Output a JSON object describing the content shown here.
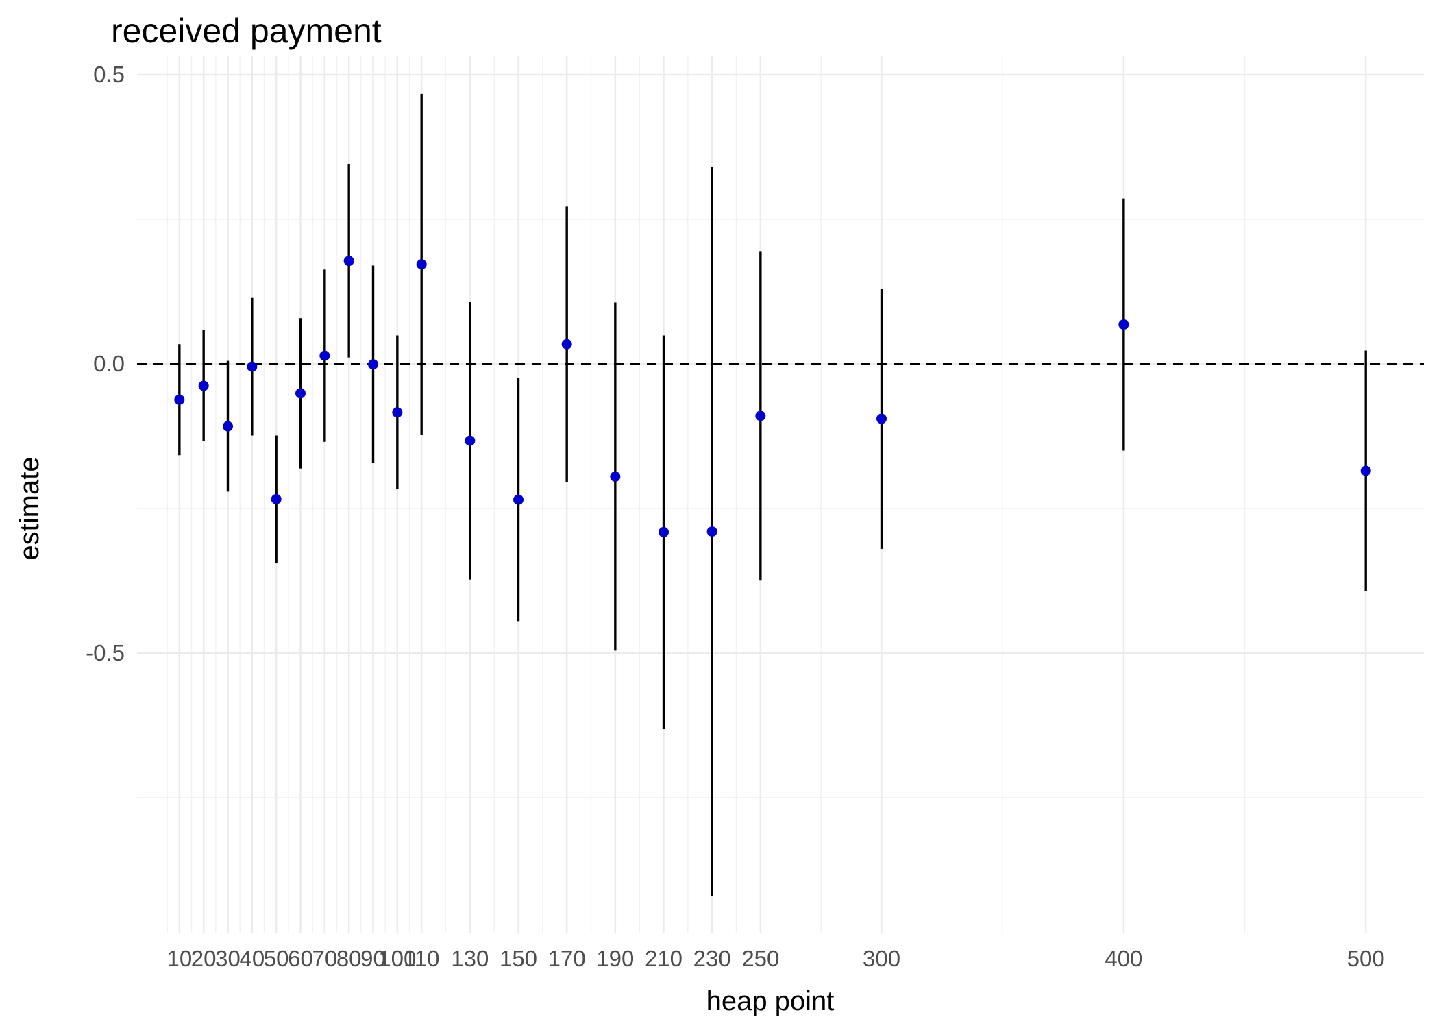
{
  "chart_data": {
    "type": "scatter",
    "subtype": "point-range",
    "title": "received payment",
    "xlabel": "heap point",
    "ylabel": "estimate",
    "xlim": [
      -7.5,
      524
    ],
    "ylim": [
      -0.985,
      0.532
    ],
    "x_ticks": [
      10,
      20,
      30,
      40,
      50,
      60,
      70,
      80,
      90,
      100,
      110,
      130,
      150,
      170,
      190,
      210,
      230,
      250,
      300,
      400,
      500
    ],
    "x_tick_labels": [
      "10",
      "20",
      "30",
      "40",
      "50",
      "60",
      "70",
      "80",
      "90",
      "100",
      "110",
      "130",
      "150",
      "170",
      "190",
      "210",
      "230",
      "250",
      "300",
      "400",
      "500"
    ],
    "y_ticks": [
      0.5,
      0.0,
      -0.5
    ],
    "y_tick_labels": [
      "0.5",
      "0.0",
      "-0.5"
    ],
    "y_minor_ticks": [
      0.25,
      -0.25,
      -0.75
    ],
    "reference_line": {
      "y": 0,
      "style": "dashed",
      "color": "#000000"
    },
    "point_color": "#0000cd",
    "errorbar_color": "#000000",
    "grid": true,
    "points": [
      {
        "x": 10,
        "estimate": -0.062,
        "low": -0.158,
        "high": 0.034
      },
      {
        "x": 20,
        "estimate": -0.038,
        "low": -0.134,
        "high": 0.058
      },
      {
        "x": 30,
        "estimate": -0.108,
        "low": -0.221,
        "high": 0.005
      },
      {
        "x": 40,
        "estimate": -0.005,
        "low": -0.124,
        "high": 0.114
      },
      {
        "x": 50,
        "estimate": -0.234,
        "low": -0.344,
        "high": -0.124
      },
      {
        "x": 60,
        "estimate": -0.051,
        "low": -0.181,
        "high": 0.079
      },
      {
        "x": 70,
        "estimate": 0.014,
        "low": -0.135,
        "high": 0.163
      },
      {
        "x": 80,
        "estimate": 0.178,
        "low": 0.011,
        "high": 0.345
      },
      {
        "x": 90,
        "estimate": -0.001,
        "low": -0.172,
        "high": 0.17
      },
      {
        "x": 100,
        "estimate": -0.084,
        "low": -0.217,
        "high": 0.049
      },
      {
        "x": 110,
        "estimate": 0.172,
        "low": -0.123,
        "high": 0.467
      },
      {
        "x": 130,
        "estimate": -0.133,
        "low": -0.373,
        "high": 0.107
      },
      {
        "x": 150,
        "estimate": -0.235,
        "low": -0.445,
        "high": -0.025
      },
      {
        "x": 170,
        "estimate": 0.034,
        "low": -0.204,
        "high": 0.272
      },
      {
        "x": 190,
        "estimate": -0.195,
        "low": -0.496,
        "high": 0.106
      },
      {
        "x": 210,
        "estimate": -0.291,
        "low": -0.631,
        "high": 0.049
      },
      {
        "x": 230,
        "estimate": -0.29,
        "low": -0.921,
        "high": 0.341
      },
      {
        "x": 250,
        "estimate": -0.09,
        "low": -0.375,
        "high": 0.195
      },
      {
        "x": 300,
        "estimate": -0.095,
        "low": -0.32,
        "high": 0.13
      },
      {
        "x": 400,
        "estimate": 0.068,
        "low": -0.15,
        "high": 0.286
      },
      {
        "x": 500,
        "estimate": -0.185,
        "low": -0.393,
        "high": 0.023
      }
    ]
  }
}
